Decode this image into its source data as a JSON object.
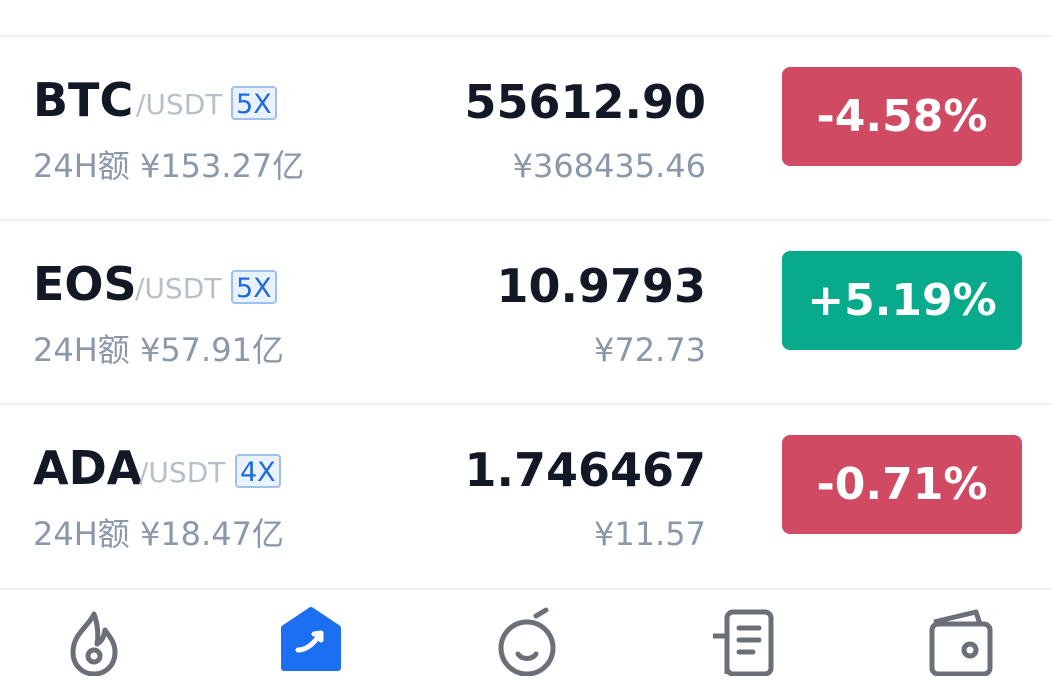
{
  "colors": {
    "down": "#d14a63",
    "up": "#07aa8a",
    "accent": "#1d6ff2"
  },
  "markets": [
    {
      "symbol": "BTC",
      "quote": "/USDT",
      "leverage": "5X",
      "volume": "24H额 ¥153.27亿",
      "price": "55612.90",
      "price_cny": "¥368435.46",
      "change": "-4.58%",
      "direction": "down"
    },
    {
      "symbol": "EOS",
      "quote": "/USDT",
      "leverage": "5X",
      "volume": "24H额 ¥57.91亿",
      "price": "10.9793",
      "price_cny": "¥72.73",
      "change": "+5.19%",
      "direction": "up"
    },
    {
      "symbol": "ADA",
      "quote": "/USDT",
      "leverage": "4X",
      "volume": "24H额 ¥18.47亿",
      "price": "1.746467",
      "price_cny": "¥11.57",
      "change": "-0.71%",
      "direction": "down"
    }
  ],
  "tabbar": {
    "tabs": [
      {
        "icon": "fire-icon",
        "active": false
      },
      {
        "icon": "trade-icon",
        "active": true
      },
      {
        "icon": "discover-icon",
        "active": false
      },
      {
        "icon": "news-icon",
        "active": false
      },
      {
        "icon": "wallet-icon",
        "active": false
      }
    ]
  }
}
